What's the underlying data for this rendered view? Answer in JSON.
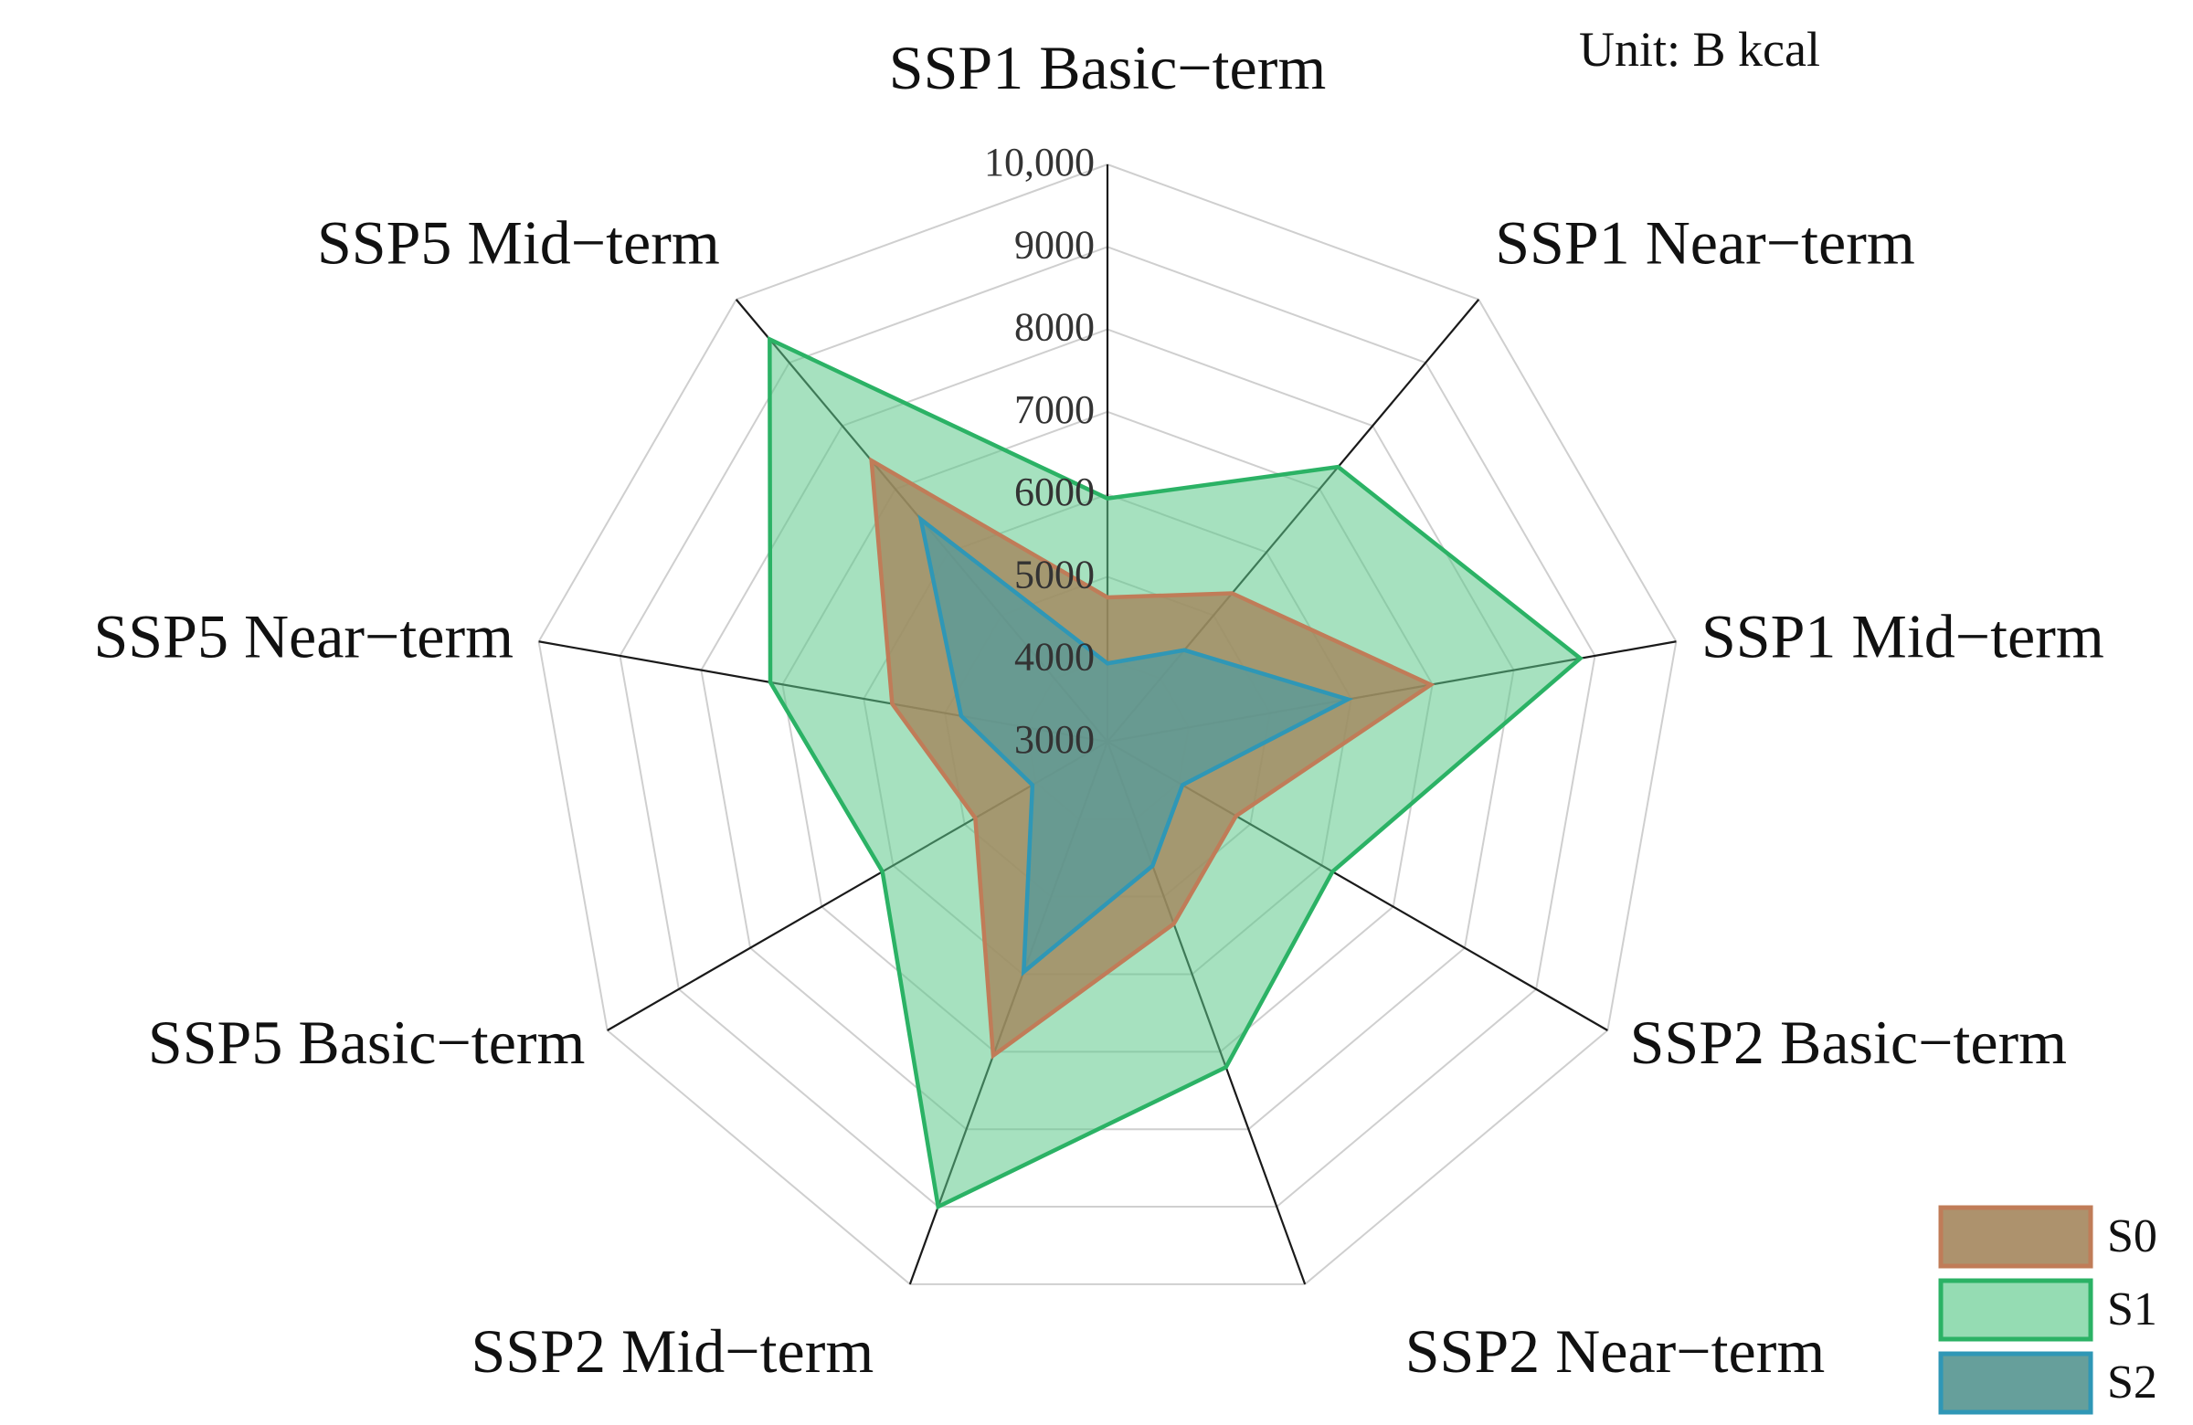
{
  "unit_label": "Unit: B kcal",
  "chart_data": {
    "type": "radar",
    "categories": [
      "SSP1 Basic−term",
      "SSP1 Near−term",
      "SSP1 Mid−term",
      "SSP2 Basic−term",
      "SSP2 Near−term",
      "SSP2 Mid−term",
      "SSP5 Basic−term",
      "SSP5 Near−term",
      "SSP5 Mid−term"
    ],
    "ticks": [
      3000,
      4000,
      5000,
      6000,
      7000,
      8000,
      9000,
      10000
    ],
    "tick_labels": [
      "3000",
      "4000",
      "5000",
      "6000",
      "7000",
      "8000",
      "9000",
      "10,000"
    ],
    "range": [
      3000,
      10000
    ],
    "grid": true,
    "legend_position": "bottom-right",
    "series": [
      {
        "name": "S1",
        "values": [
          5950,
          7350,
          8820,
          6150,
          7200,
          9000,
          6150,
          7150,
          9370
        ],
        "fill": "#5cc98a",
        "stroke": "#2bb265",
        "fill_opacity": 0.55
      },
      {
        "name": "S0",
        "values": [
          4750,
          5350,
          6980,
          4800,
          5350,
          7050,
          4850,
          5650,
          7450
        ],
        "fill": "#a4865d",
        "stroke": "#c07c58",
        "fill_opacity": 0.8
      },
      {
        "name": "S2",
        "values": [
          3950,
          4450,
          5960,
          4050,
          4600,
          5970,
          4050,
          4800,
          6520
        ],
        "fill": "#5e9a96",
        "stroke": "#2f97b6",
        "fill_opacity": 0.85
      }
    ],
    "legend_order": [
      "S0",
      "S1",
      "S2"
    ]
  }
}
